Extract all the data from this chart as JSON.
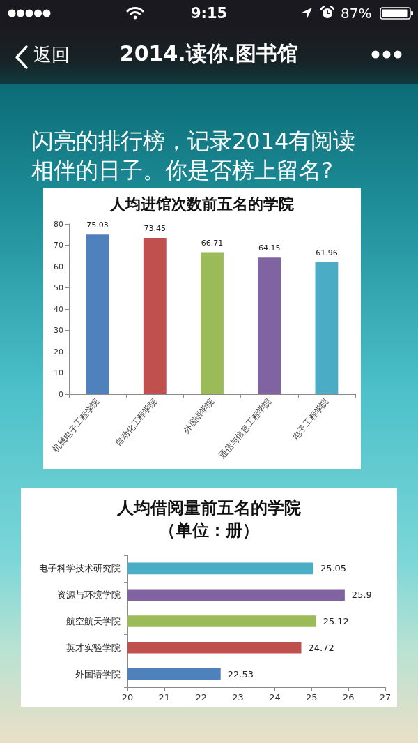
{
  "chart_data": [
    {
      "type": "other",
      "title": "2014.读你.图书馆",
      "subtitle": "闪亮的排行榜，记录2014有阅读相伴的日子。你是否榜上留名?",
      "annotations": [
        "9:15",
        "87%",
        "返回"
      ]
    },
    {
      "type": "bar",
      "title": "人均进馆次数前五名的学院",
      "categories": [
        "机械电子工程学院",
        "自动化工程学院",
        "外国语学院",
        "通信与信息工程学院",
        "电子工程学院"
      ],
      "values": [
        75.03,
        73.45,
        66.71,
        64.15,
        61.96
      ],
      "colors": [
        "#4f81bd",
        "#c0504d",
        "#9bbb59",
        "#8064a2",
        "#4bacc6"
      ],
      "ylim": [
        0,
        80
      ],
      "yticks": [
        0,
        10,
        20,
        30,
        40,
        50,
        60,
        70,
        80
      ],
      "data_labels": true
    },
    {
      "type": "bar",
      "orientation": "horizontal",
      "title": "人均借阅量前五名的学院",
      "subtitle": "（单位：册）",
      "categories": [
        "电子科学技术研究院",
        "资源与环境学院",
        "航空航天学院",
        "英才实验学院",
        "外国语学院"
      ],
      "values": [
        25.05,
        25.9,
        25.12,
        24.72,
        22.53
      ],
      "colors": [
        "#4bacc6",
        "#8064a2",
        "#9bbb59",
        "#c0504d",
        "#4f81bd"
      ],
      "xlim": [
        20,
        27
      ],
      "xticks": [
        20,
        21,
        22,
        23,
        24,
        25,
        26,
        27
      ],
      "data_labels": true
    }
  ]
}
